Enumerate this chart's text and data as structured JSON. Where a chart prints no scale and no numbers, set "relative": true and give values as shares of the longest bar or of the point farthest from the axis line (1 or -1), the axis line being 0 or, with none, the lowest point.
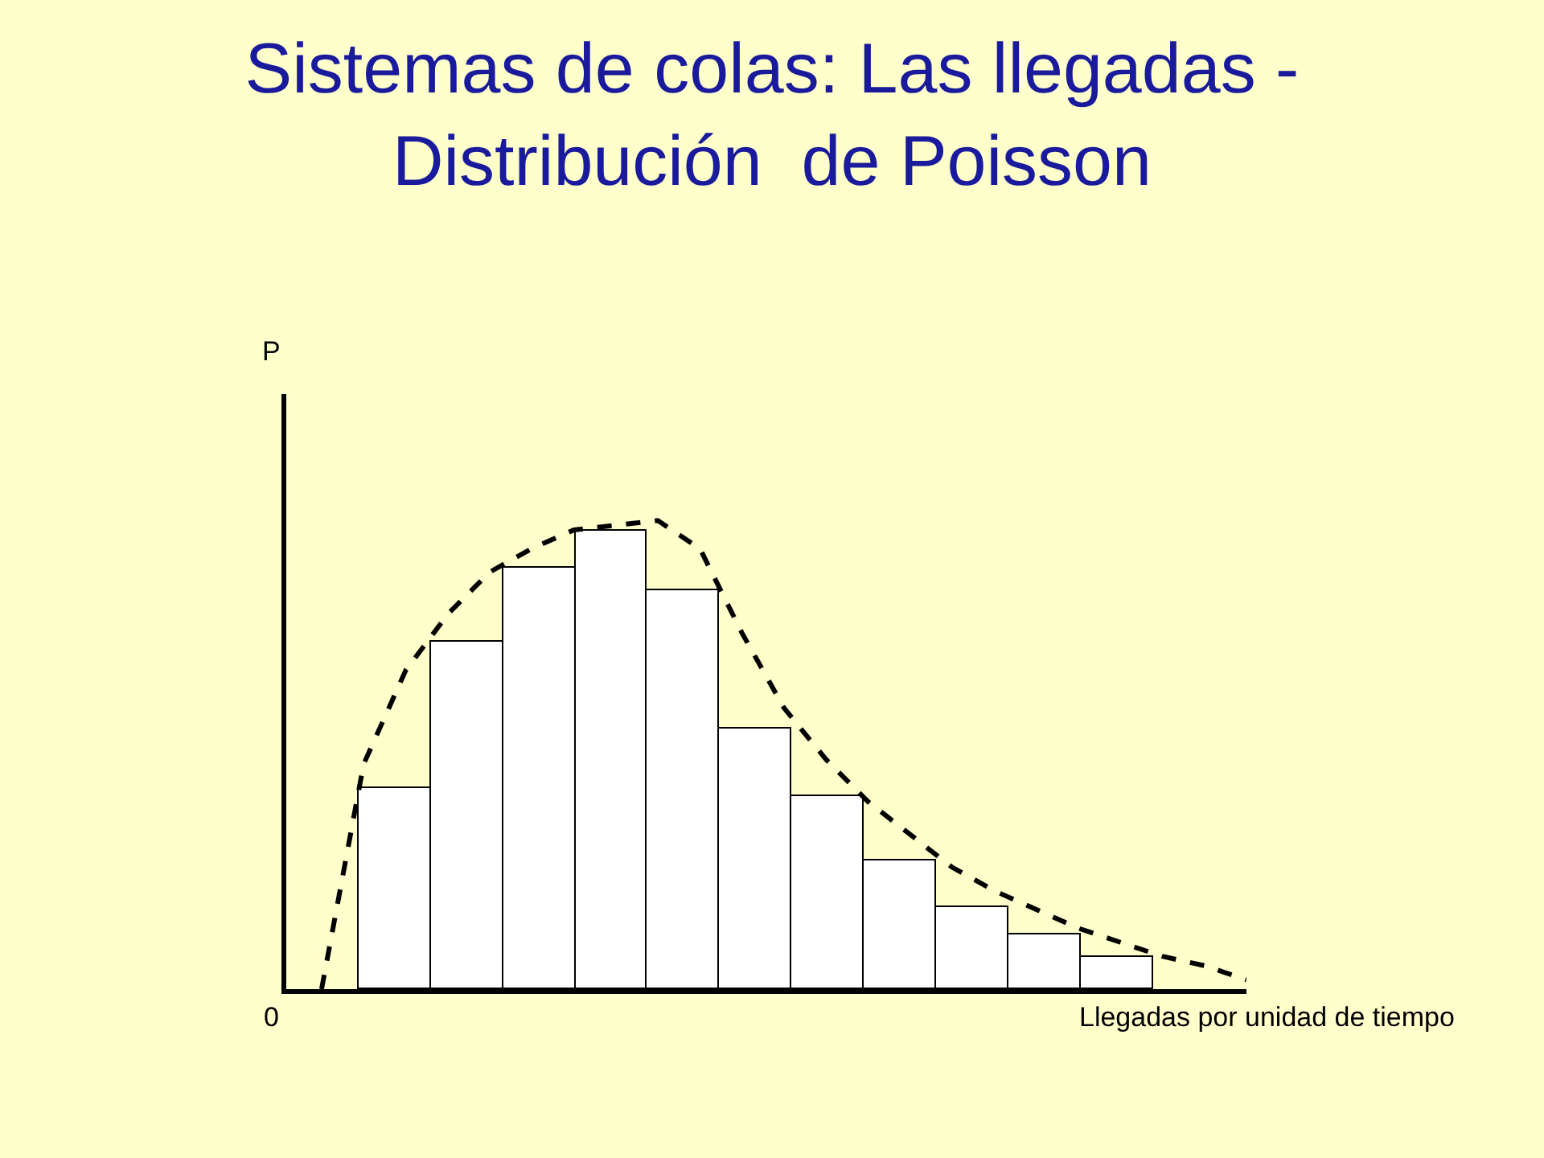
{
  "chart_data": [
    {
      "type": "bar",
      "title": "Sistemas de colas: Las llegadas -\nDistribución  de Poisson",
      "xlabel": "Llegadas por unidad de tiempo",
      "ylabel": "P",
      "annotations": [
        "0"
      ],
      "relative": true,
      "grid": false,
      "color": "#ffffff",
      "categories": [
        null,
        null,
        null,
        null,
        null,
        null,
        null,
        null,
        null,
        null,
        null
      ],
      "values": [
        0.44,
        0.76,
        0.92,
        1,
        0.87,
        0.57,
        0.42,
        0.28,
        0.18,
        0.12,
        0.07
      ]
    },
    {
      "type": "line",
      "relative": true,
      "grid": false,
      "color": "#000000",
      "line_style": "dashed",
      "marker": "none",
      "categories": [
        null,
        null,
        null,
        null,
        null,
        null,
        null,
        null,
        null,
        null,
        null,
        null,
        null,
        null,
        null,
        null,
        null,
        null,
        null,
        null,
        null,
        null,
        null
      ],
      "values": [
        0,
        0.48,
        0.68,
        0.8,
        0.89,
        0.94,
        0.98,
        0.99,
        1.0,
        0.94,
        0.76,
        0.6,
        0.49,
        0.4,
        0.33,
        0.26,
        0.21,
        0.17,
        0.13,
        0.1,
        0.07,
        0.05,
        0.02
      ]
    }
  ]
}
